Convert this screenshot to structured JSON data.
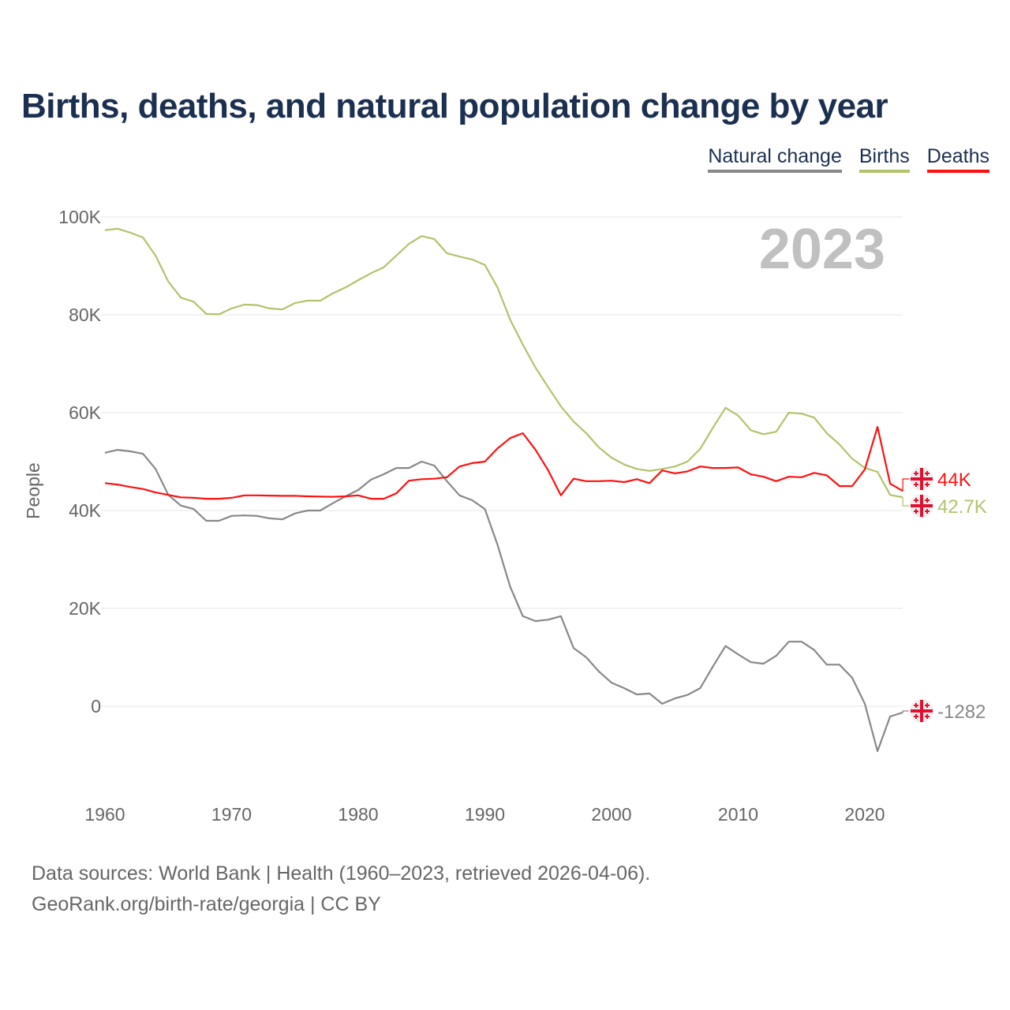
{
  "chart_data": {
    "type": "line",
    "title": "Births, deaths, and natural population change by year",
    "ylabel": "People",
    "xlabel": "",
    "xlim": [
      1960,
      2023
    ],
    "ylim": [
      -15000,
      100000
    ],
    "x_ticks": [
      1960,
      1970,
      1980,
      1990,
      2000,
      2010,
      2020
    ],
    "x_tick_labels": [
      "1960",
      "1970",
      "1980",
      "1990",
      "2000",
      "2010",
      "2020"
    ],
    "y_ticks": [
      0,
      20000,
      40000,
      60000,
      80000,
      100000
    ],
    "y_tick_labels": [
      "0",
      "20K",
      "40K",
      "60K",
      "80K",
      "100K"
    ],
    "grid": true,
    "legend_position": "top-right",
    "year_label": "2023",
    "x_start": 1960,
    "series": [
      {
        "name": "Natural change",
        "color": "#888888",
        "end_label": "-1282",
        "values": [
          51800,
          52400,
          52100,
          51600,
          48500,
          43200,
          41000,
          40300,
          37900,
          37900,
          38900,
          39000,
          38900,
          38400,
          38200,
          39400,
          40000,
          40000,
          41500,
          42900,
          44200,
          46300,
          47400,
          48700,
          48700,
          50000,
          49200,
          46000,
          43100,
          42100,
          40300,
          33000,
          24400,
          18400,
          17400,
          17700,
          18400,
          11900,
          10000,
          7100,
          4800,
          3700,
          2400,
          2600,
          500,
          1600,
          2300,
          3700,
          8100,
          12300,
          10600,
          9000,
          8700,
          10300,
          13200,
          13200,
          11500,
          8500,
          8500,
          5800,
          500,
          -9200,
          -2100,
          -1282
        ]
      },
      {
        "name": "Births",
        "color": "#b2c36c",
        "end_label": "42.7K",
        "values": [
          97300,
          97600,
          96800,
          95800,
          92100,
          86800,
          83500,
          82700,
          80200,
          80100,
          81300,
          82100,
          82000,
          81300,
          81100,
          82400,
          82900,
          82900,
          84400,
          85600,
          87100,
          88500,
          89700,
          92100,
          94500,
          96100,
          95500,
          92600,
          91900,
          91300,
          90200,
          85600,
          79000,
          73900,
          69200,
          65200,
          61300,
          58200,
          55800,
          52900,
          50800,
          49400,
          48500,
          48100,
          48500,
          49000,
          50000,
          52600,
          56900,
          61000,
          59400,
          56400,
          55600,
          56100,
          60000,
          59800,
          59000,
          55800,
          53500,
          50600,
          48700,
          47900,
          43200,
          42700
        ]
      },
      {
        "name": "Deaths",
        "color": "#ff1010",
        "end_label": "44K",
        "values": [
          45600,
          45300,
          44800,
          44400,
          43700,
          43200,
          42700,
          42600,
          42400,
          42400,
          42600,
          43100,
          43100,
          43050,
          43000,
          43000,
          42900,
          42850,
          42800,
          42900,
          43100,
          42400,
          42400,
          43500,
          46100,
          46400,
          46500,
          46800,
          49000,
          49700,
          50000,
          52700,
          54800,
          55800,
          52400,
          48200,
          43100,
          46500,
          46000,
          46000,
          46100,
          45800,
          46400,
          45600,
          48200,
          47600,
          48000,
          49000,
          48700,
          48700,
          48800,
          47400,
          46900,
          46000,
          46900,
          46800,
          47700,
          47200,
          45000,
          45000,
          48400,
          57100,
          45500,
          44000
        ]
      }
    ]
  },
  "legend": {
    "natural_change": "Natural change",
    "births": "Births",
    "deaths": "Deaths"
  },
  "source": {
    "line1": "Data sources: World Bank | Health (1960–2023, retrieved 2026-04-06).",
    "line2": "GeoRank.org/birth-rate/georgia | CC BY"
  },
  "flag_icon": "georgia-flag-icon"
}
